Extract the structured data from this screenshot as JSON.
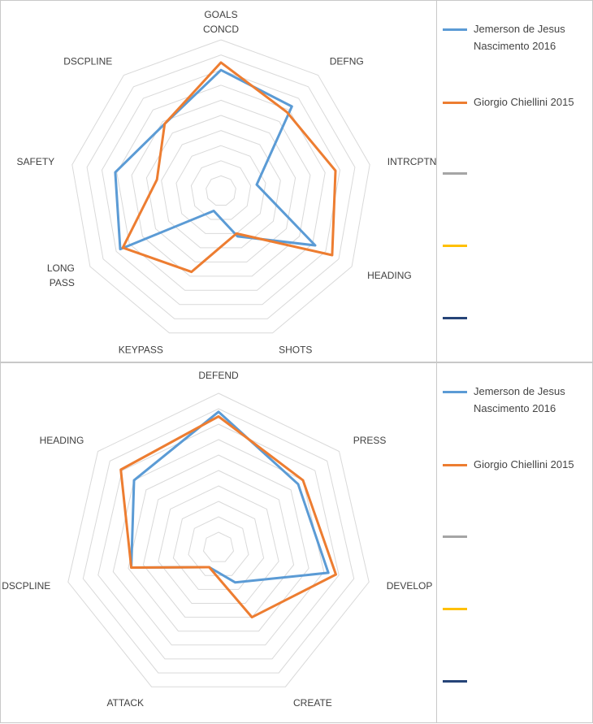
{
  "chart_data": [
    {
      "type": "radar",
      "axes": [
        "GOALS CONCD",
        "DEFNG",
        "INTRCPTN",
        "HEADING",
        "SHOTS",
        "KEYPASS",
        "LONG PASS",
        "SAFETY",
        "DSCPLINE"
      ],
      "axis_label_lines": [
        [
          "GOALS",
          "CONCD"
        ],
        [
          "DEFNG"
        ],
        [
          "INTRCPTN"
        ],
        [
          "HEADING"
        ],
        [
          "SHOTS"
        ],
        [
          "KEYPASS"
        ],
        [
          "LONG",
          "PASS"
        ],
        [
          "SAFETY"
        ],
        [
          "DSCPLINE"
        ]
      ],
      "rlim": [
        0,
        100
      ],
      "grid_levels": 10,
      "series": [
        {
          "name": "Jemerson de Jesus Nascimento 2016",
          "name_lines": [
            "Jemerson de Jesus",
            "Nascimento 2016"
          ],
          "color": "#5B9BD5",
          "values": [
            80,
            73,
            24,
            72,
            32,
            14,
            77,
            71,
            58
          ]
        },
        {
          "name": "Giorgio Chiellini 2015",
          "name_lines": [
            "Giorgio Chiellini 2015"
          ],
          "color": "#ED7D31",
          "values": [
            85,
            68,
            77,
            85,
            30,
            57,
            75,
            43,
            58
          ]
        },
        {
          "name": "",
          "name_lines": [],
          "color": "#A5A5A5",
          "values": []
        },
        {
          "name": "",
          "name_lines": [],
          "color": "#FFC000",
          "values": []
        },
        {
          "name": "",
          "name_lines": [],
          "color": "#264478",
          "values": []
        }
      ]
    },
    {
      "type": "radar",
      "axes": [
        "DEFEND",
        "PRESS",
        "DEVELOP",
        "CREATE",
        "ATTACK",
        "DSCPLINE",
        "HEADING"
      ],
      "axis_label_lines": [
        [
          "DEFEND"
        ],
        [
          "PRESS"
        ],
        [
          "DEVELOP"
        ],
        [
          "CREATE"
        ],
        [
          "ATTACK"
        ],
        [
          "DSCPLINE"
        ],
        [
          "HEADING"
        ]
      ],
      "rlim": [
        0,
        100
      ],
      "grid_levels": 10,
      "series": [
        {
          "name": "Jemerson de Jesus Nascimento 2016",
          "name_lines": [
            "Jemerson de Jesus",
            "Nascimento 2016"
          ],
          "color": "#5B9BD5",
          "values": [
            88,
            66,
            73,
            25,
            14,
            58,
            70
          ]
        },
        {
          "name": "Giorgio Chiellini 2015",
          "name_lines": [
            "Giorgio Chiellini 2015"
          ],
          "color": "#ED7D31",
          "values": [
            85,
            70,
            78,
            50,
            14,
            58,
            81
          ]
        },
        {
          "name": "",
          "name_lines": [],
          "color": "#A5A5A5",
          "values": []
        },
        {
          "name": "",
          "name_lines": [],
          "color": "#FFC000",
          "values": []
        },
        {
          "name": "",
          "name_lines": [],
          "color": "#264478",
          "values": []
        }
      ]
    }
  ]
}
